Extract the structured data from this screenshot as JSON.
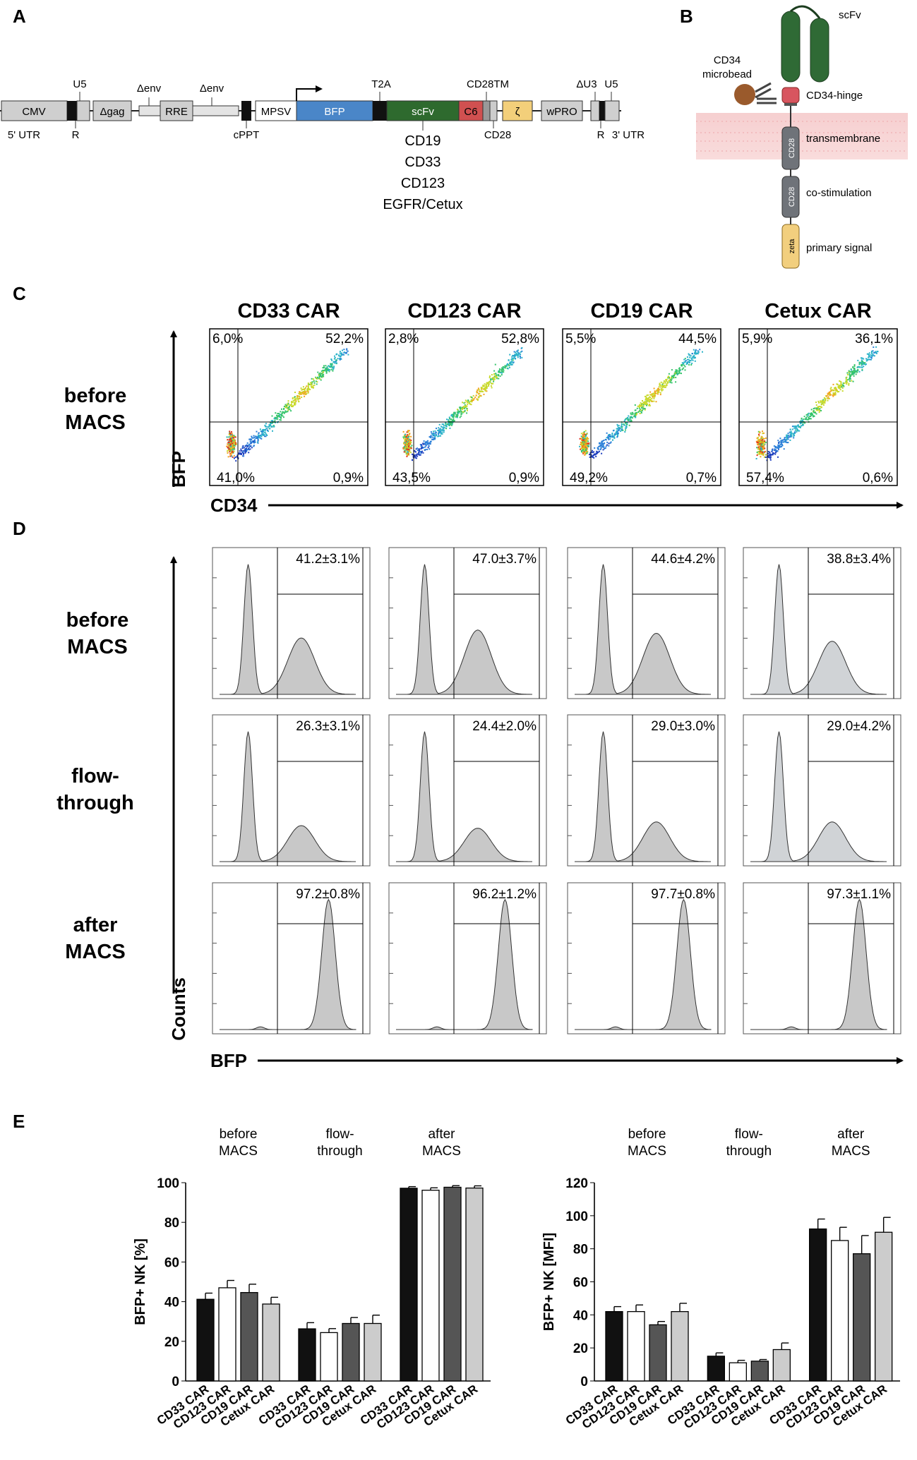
{
  "panel_letters": {
    "a": "A",
    "b": "B",
    "c": "C",
    "d": "D",
    "e": "E"
  },
  "panelA": {
    "blocks": {
      "cmv": "CMV",
      "dgag": "Δgag",
      "rre": "RRE",
      "mpsv": "MPSV",
      "bfp": "BFP",
      "scfv": "scFv",
      "c6": "C6",
      "zeta": "ζ",
      "wpro": "wPRO"
    },
    "labels": {
      "u5_left": "U5",
      "r_left": "R",
      "utr5": "5' UTR",
      "denv1": "Δenv",
      "denv2": "Δenv",
      "cppt": "cPPT",
      "t2a": "T2A",
      "cd28tm": "CD28TM",
      "cd28": "CD28",
      "du3": "ΔU3",
      "u5_right": "U5",
      "r_right": "R",
      "utr3": "3' UTR"
    },
    "targets": [
      "CD19",
      "CD33",
      "CD123",
      "EGFR/Cetux"
    ]
  },
  "panelB": {
    "scfv": "scFv",
    "microbead1": "CD34",
    "microbead2": "microbead",
    "hinge": "CD34-hinge",
    "tm": "transmembrane",
    "costim": "co-stimulation",
    "primary": "primary signal",
    "cd28_a": "CD28",
    "cd28_b": "CD28",
    "zeta": "zeta"
  },
  "panelC": {
    "yaxis": "BFP",
    "xaxis": "CD34",
    "row_label1": "before",
    "row_label2": "MACS",
    "plots": [
      {
        "title": "CD33 CAR",
        "ul": "6,0%",
        "ur": "52,2%",
        "ll": "41,0%",
        "lr": "0,9%"
      },
      {
        "title": "CD123 CAR",
        "ul": "2,8%",
        "ur": "52,8%",
        "ll": "43,5%",
        "lr": "0,9%"
      },
      {
        "title": "CD19 CAR",
        "ul": "5,5%",
        "ur": "44,5%",
        "ll": "49,2%",
        "lr": "0,7%"
      },
      {
        "title": "Cetux CAR",
        "ul": "5,9%",
        "ur": "36,1%",
        "ll": "57,4%",
        "lr": "0,6%"
      }
    ]
  },
  "panelD": {
    "yaxis": "Counts",
    "xaxis": "BFP",
    "rows": [
      {
        "label1": "before",
        "label2": "MACS",
        "values": [
          "41.2±3.1%",
          "47.0±3.7%",
          "44.6±4.2%",
          "38.8±3.4%"
        ]
      },
      {
        "label1": "flow-",
        "label2": "through",
        "values": [
          "26.3±3.1%",
          "24.4±2.0%",
          "29.0±3.0%",
          "29.0±4.2%"
        ]
      },
      {
        "label1": "after",
        "label2": "MACS",
        "values": [
          "97.2±0.8%",
          "96.2±1.2%",
          "97.7±0.8%",
          "97.3±1.1%"
        ]
      }
    ]
  },
  "chart_data": [
    {
      "type": "bar",
      "title": "",
      "ylabel": "BFP+ NK [%]",
      "ylim": [
        0,
        100
      ],
      "yticks": [
        "0",
        "20",
        "40",
        "60",
        "80",
        "100"
      ],
      "groups": [
        {
          "l1": "before",
          "l2": "MACS"
        },
        {
          "l1": "flow-",
          "l2": "through"
        },
        {
          "l1": "after",
          "l2": "MACS"
        }
      ],
      "categories": [
        "CD33 CAR",
        "CD123 CAR",
        "CD19 CAR",
        "Cetux CAR"
      ],
      "colors": [
        "#111111",
        "#ffffff",
        "#555555",
        "#cccccc"
      ],
      "series": [
        {
          "name": "before MACS",
          "values": [
            41.2,
            47.0,
            44.6,
            38.8
          ],
          "errors": [
            3.1,
            3.7,
            4.2,
            3.4
          ]
        },
        {
          "name": "flow-through",
          "values": [
            26.3,
            24.4,
            29.0,
            29.0
          ],
          "errors": [
            3.1,
            2.0,
            3.0,
            4.2
          ]
        },
        {
          "name": "after MACS",
          "values": [
            97.2,
            96.2,
            97.7,
            97.3
          ],
          "errors": [
            0.8,
            1.2,
            0.8,
            1.1
          ]
        }
      ]
    },
    {
      "type": "bar",
      "title": "",
      "ylabel": "BFP+ NK [MFI]",
      "ylim": [
        0,
        120
      ],
      "yticks": [
        "0",
        "20",
        "40",
        "60",
        "80",
        "100",
        "120"
      ],
      "groups": [
        {
          "l1": "before",
          "l2": "MACS"
        },
        {
          "l1": "flow-",
          "l2": "through"
        },
        {
          "l1": "after",
          "l2": "MACS"
        }
      ],
      "categories": [
        "CD33 CAR",
        "CD123 CAR",
        "CD19 CAR",
        "Cetux CAR"
      ],
      "colors": [
        "#111111",
        "#ffffff",
        "#555555",
        "#cccccc"
      ],
      "series": [
        {
          "name": "before MACS",
          "values": [
            42,
            42,
            34,
            42
          ],
          "errors": [
            3,
            4,
            2,
            5
          ]
        },
        {
          "name": "flow-through",
          "values": [
            15,
            11,
            12,
            19
          ],
          "errors": [
            2,
            1.5,
            1,
            4
          ]
        },
        {
          "name": "after MACS",
          "values": [
            92,
            85,
            77,
            90
          ],
          "errors": [
            6,
            8,
            11,
            9
          ]
        }
      ]
    }
  ]
}
